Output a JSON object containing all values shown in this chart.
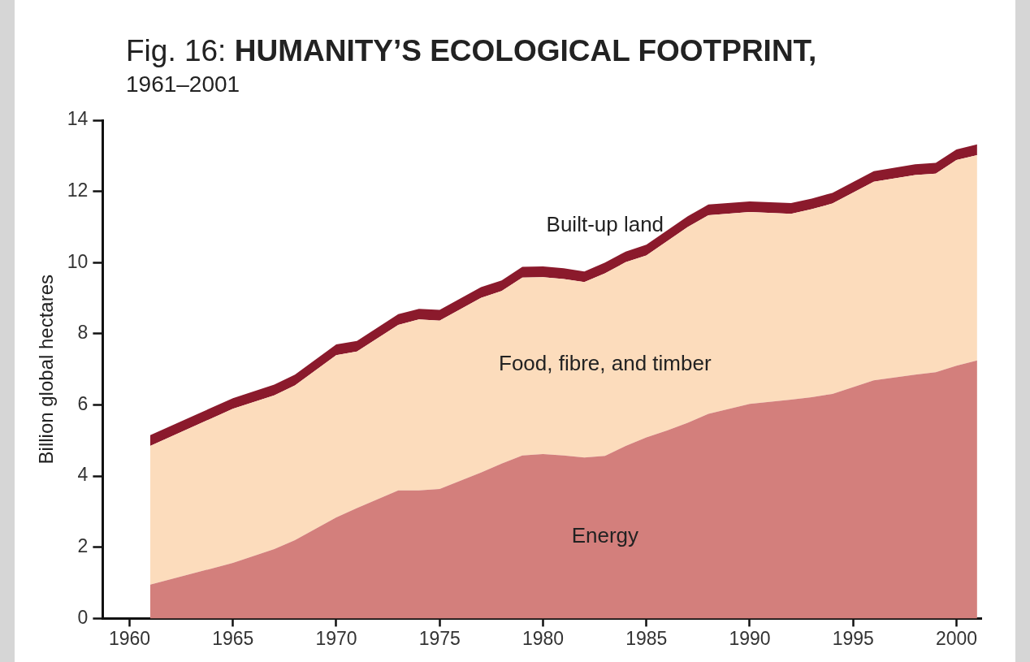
{
  "chart_data": {
    "type": "area",
    "title": "Fig. 16: HUMANITY’S ECOLOGICAL FOOTPRINT,",
    "subtitle": "1961–2001",
    "ylabel": "Billion global hectares",
    "stacked": true,
    "x": [
      1961,
      1965,
      1967,
      1968,
      1970,
      1971,
      1973,
      1974,
      1975,
      1977,
      1978,
      1979,
      1980,
      1981,
      1982,
      1983,
      1984,
      1985,
      1986,
      1987,
      1988,
      1990,
      1992,
      1993,
      1994,
      1996,
      1998,
      1999,
      2000,
      2001
    ],
    "series": [
      {
        "name": "Energy",
        "color": "#d37f7c",
        "values": [
          0.95,
          1.56,
          1.95,
          2.2,
          2.84,
          3.1,
          3.6,
          3.6,
          3.64,
          4.1,
          4.35,
          4.58,
          4.62,
          4.58,
          4.52,
          4.57,
          4.85,
          5.09,
          5.28,
          5.5,
          5.75,
          6.03,
          6.15,
          6.22,
          6.31,
          6.69,
          6.85,
          6.92,
          7.1,
          7.25
        ]
      },
      {
        "name": "Food, fibre, and timber",
        "color": "#fcdcbc",
        "values": [
          3.9,
          4.33,
          4.32,
          4.35,
          4.56,
          4.4,
          4.65,
          4.8,
          4.73,
          4.91,
          4.85,
          5.0,
          4.97,
          4.96,
          4.93,
          5.13,
          5.16,
          5.11,
          5.32,
          5.5,
          5.58,
          5.39,
          5.22,
          5.28,
          5.35,
          5.58,
          5.61,
          5.58,
          5.78,
          5.77
        ]
      },
      {
        "name": "Built-up land",
        "color": "#8b1a2c",
        "values": [
          0.3,
          0.3,
          0.3,
          0.3,
          0.3,
          0.3,
          0.3,
          0.3,
          0.3,
          0.3,
          0.3,
          0.3,
          0.3,
          0.3,
          0.3,
          0.3,
          0.3,
          0.3,
          0.3,
          0.3,
          0.3,
          0.3,
          0.3,
          0.3,
          0.3,
          0.3,
          0.3,
          0.3,
          0.3,
          0.3
        ]
      }
    ],
    "xlim": [
      1958.7,
      2001.2
    ],
    "xticks": [
      1960,
      1965,
      1970,
      1975,
      1980,
      1985,
      1990,
      1995,
      2000
    ],
    "ylim": [
      0,
      14
    ],
    "yticks": [
      0,
      2,
      4,
      6,
      8,
      10,
      12,
      14
    ],
    "grid": false,
    "legend": false
  }
}
